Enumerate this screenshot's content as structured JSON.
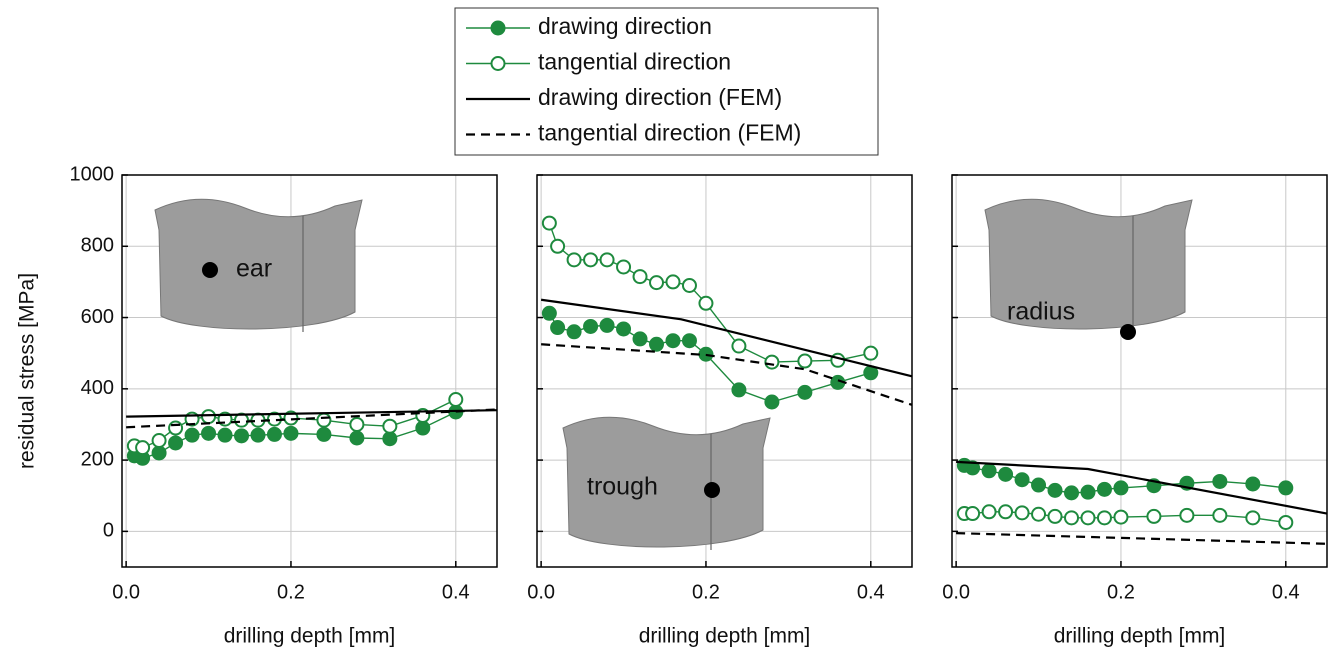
{
  "chart_data": [
    {
      "type": "line",
      "annotation": "ear",
      "xlabel": "drilling depth [mm]",
      "ylabel": "residual stress [MPa]",
      "x": [
        0.01,
        0.02,
        0.04,
        0.06,
        0.08,
        0.1,
        0.12,
        0.14,
        0.16,
        0.18,
        0.2,
        0.24,
        0.28,
        0.32,
        0.36,
        0.4
      ],
      "xlim": [
        -0.005,
        0.45
      ],
      "xticks": [
        {
          "value": 0,
          "label": "0.0"
        },
        0.2,
        0.4
      ],
      "ylim": [
        -100,
        1000
      ],
      "yticks": [
        0,
        200,
        400,
        600,
        800,
        1000
      ],
      "ytick_labels": true,
      "grid": true,
      "series": [
        {
          "name": "drawing direction",
          "color": "#1e8a3e",
          "marker": "filled",
          "values": [
            212,
            205,
            220,
            248,
            270,
            275,
            270,
            268,
            270,
            272,
            275,
            272,
            262,
            260,
            290,
            335
          ]
        },
        {
          "name": "tangential direction",
          "color": "#1e8a3e",
          "marker": "open",
          "values": [
            240,
            235,
            255,
            290,
            315,
            322,
            315,
            312,
            312,
            315,
            318,
            312,
            300,
            295,
            325,
            370
          ]
        },
        {
          "name": "drawing direction (FEM)",
          "color": "#000000",
          "dash": false,
          "x": [
            0,
            0.45
          ],
          "values": [
            322,
            340
          ]
        },
        {
          "name": "tangential direction (FEM)",
          "color": "#000000",
          "dash": true,
          "x": [
            0,
            0.45
          ],
          "values": [
            292,
            342
          ]
        }
      ]
    },
    {
      "type": "line",
      "annotation": "trough",
      "xlabel": "drilling depth [mm]",
      "x": [
        0.01,
        0.02,
        0.04,
        0.06,
        0.08,
        0.1,
        0.12,
        0.14,
        0.16,
        0.18,
        0.2,
        0.24,
        0.28,
        0.32,
        0.36,
        0.4
      ],
      "xlim": [
        -0.005,
        0.45
      ],
      "xticks": [
        {
          "value": 0,
          "label": "0.0"
        },
        0.2,
        0.4
      ],
      "ylim": [
        -100,
        1000
      ],
      "yticks": [
        0,
        200,
        400,
        600,
        800,
        1000
      ],
      "ytick_labels": false,
      "grid": true,
      "series": [
        {
          "color": "#1e8a3e",
          "marker": "filled",
          "values": [
            612,
            572,
            560,
            575,
            578,
            568,
            540,
            525,
            535,
            535,
            497,
            397,
            363,
            390,
            418,
            445
          ]
        },
        {
          "color": "#1e8a3e",
          "marker": "open",
          "values": [
            865,
            800,
            762,
            762,
            762,
            742,
            715,
            698,
            700,
            690,
            640,
            520,
            475,
            478,
            480,
            500
          ]
        },
        {
          "color": "#000000",
          "dash": false,
          "x": [
            0,
            0.17,
            0.45
          ],
          "values": [
            650,
            595,
            435
          ]
        },
        {
          "color": "#000000",
          "dash": true,
          "x": [
            0,
            0.2,
            0.32,
            0.45
          ],
          "values": [
            525,
            495,
            455,
            355
          ]
        }
      ]
    },
    {
      "type": "line",
      "annotation": "radius",
      "xlabel": "drilling depth [mm]",
      "x": [
        0.01,
        0.02,
        0.04,
        0.06,
        0.08,
        0.1,
        0.12,
        0.14,
        0.16,
        0.18,
        0.2,
        0.24,
        0.28,
        0.32,
        0.36,
        0.4
      ],
      "xlim": [
        -0.005,
        0.45
      ],
      "xticks": [
        {
          "value": 0,
          "label": "0.0"
        },
        0.2,
        0.4
      ],
      "ylim": [
        -100,
        1000
      ],
      "yticks": [
        0,
        200,
        400,
        600,
        800,
        1000
      ],
      "ytick_labels": false,
      "grid": true,
      "series": [
        {
          "color": "#1e8a3e",
          "marker": "filled",
          "values": [
            185,
            178,
            170,
            160,
            145,
            130,
            115,
            108,
            110,
            118,
            122,
            128,
            135,
            140,
            133,
            122
          ]
        },
        {
          "color": "#1e8a3e",
          "marker": "open",
          "values": [
            50,
            50,
            55,
            55,
            52,
            48,
            42,
            38,
            38,
            38,
            40,
            42,
            45,
            45,
            38,
            25
          ]
        },
        {
          "color": "#000000",
          "dash": false,
          "x": [
            0,
            0.16,
            0.45
          ],
          "values": [
            195,
            175,
            50
          ]
        },
        {
          "color": "#000000",
          "dash": true,
          "x": [
            0,
            0.45
          ],
          "values": [
            -5,
            -35
          ]
        }
      ]
    }
  ]
}
